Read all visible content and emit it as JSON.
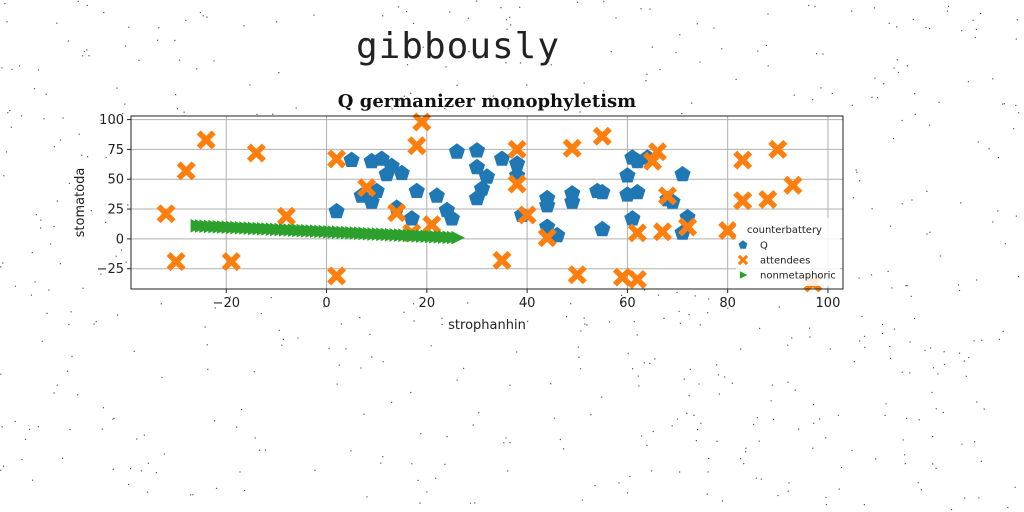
{
  "page": {
    "title": "gibbously"
  },
  "chart_data": {
    "type": "scatter",
    "title": "Q germanizer monophyletism",
    "xlabel": "strophanhin",
    "ylabel": "stomatoda",
    "xlim": [
      -39,
      103
    ],
    "ylim": [
      -42,
      103
    ],
    "xticks": [
      -20,
      0,
      20,
      40,
      60,
      80,
      100
    ],
    "yticks": [
      -25,
      0,
      25,
      50,
      75,
      100
    ],
    "grid": true,
    "legend": {
      "title": "counterbattery",
      "placement": "right"
    },
    "series": [
      {
        "name": "Q",
        "color": "#1f77b4",
        "marker": "pentagon",
        "points": [
          [
            2,
            23
          ],
          [
            5,
            66
          ],
          [
            7,
            36
          ],
          [
            9,
            65
          ],
          [
            9,
            31
          ],
          [
            10,
            40
          ],
          [
            11,
            67
          ],
          [
            12,
            54
          ],
          [
            13,
            61
          ],
          [
            14,
            26
          ],
          [
            15,
            55
          ],
          [
            17,
            17
          ],
          [
            18,
            40
          ],
          [
            22,
            36
          ],
          [
            24,
            24
          ],
          [
            25,
            17
          ],
          [
            26,
            73
          ],
          [
            30,
            60
          ],
          [
            30,
            34
          ],
          [
            30,
            74
          ],
          [
            31,
            42
          ],
          [
            32,
            52
          ],
          [
            35,
            67
          ],
          [
            38,
            53
          ],
          [
            38,
            63
          ],
          [
            39,
            20
          ],
          [
            44,
            10
          ],
          [
            44,
            28
          ],
          [
            44,
            34
          ],
          [
            46,
            3
          ],
          [
            49,
            38
          ],
          [
            49,
            31
          ],
          [
            54,
            40
          ],
          [
            55,
            8
          ],
          [
            55,
            39
          ],
          [
            60,
            37
          ],
          [
            60,
            53
          ],
          [
            61,
            68
          ],
          [
            61,
            17
          ],
          [
            62,
            65
          ],
          [
            62,
            39
          ],
          [
            64,
            68
          ],
          [
            68,
            33
          ],
          [
            69,
            31
          ],
          [
            71,
            54
          ],
          [
            71,
            5
          ],
          [
            72,
            18
          ]
        ]
      },
      {
        "name": "attendees",
        "color": "#ff7f0e",
        "marker": "x",
        "points": [
          [
            -32,
            21
          ],
          [
            -30,
            -19
          ],
          [
            -28,
            57
          ],
          [
            -24,
            83
          ],
          [
            -19,
            -19
          ],
          [
            -14,
            72
          ],
          [
            -8,
            19
          ],
          [
            2,
            67
          ],
          [
            2,
            -31
          ],
          [
            8,
            43
          ],
          [
            14,
            22
          ],
          [
            17,
            5
          ],
          [
            18,
            78
          ],
          [
            19,
            98
          ],
          [
            21,
            12
          ],
          [
            35,
            -18
          ],
          [
            38,
            75
          ],
          [
            38,
            46
          ],
          [
            40,
            20
          ],
          [
            44,
            1
          ],
          [
            49,
            76
          ],
          [
            50,
            -30
          ],
          [
            55,
            86
          ],
          [
            59,
            -32
          ],
          [
            62,
            -34
          ],
          [
            62,
            5
          ],
          [
            65,
            65
          ],
          [
            66,
            73
          ],
          [
            67,
            6
          ],
          [
            68,
            36
          ],
          [
            72,
            10
          ],
          [
            80,
            7
          ],
          [
            83,
            66
          ],
          [
            83,
            32
          ],
          [
            88,
            33
          ],
          [
            90,
            75
          ],
          [
            93,
            45
          ],
          [
            97,
            -37
          ]
        ]
      },
      {
        "name": "nonmetaphoric",
        "color": "#2ca02c",
        "marker": "triangle-right",
        "x_range": [
          -26,
          26
        ],
        "y_range": [
          11,
          1
        ],
        "count": 60
      }
    ]
  }
}
